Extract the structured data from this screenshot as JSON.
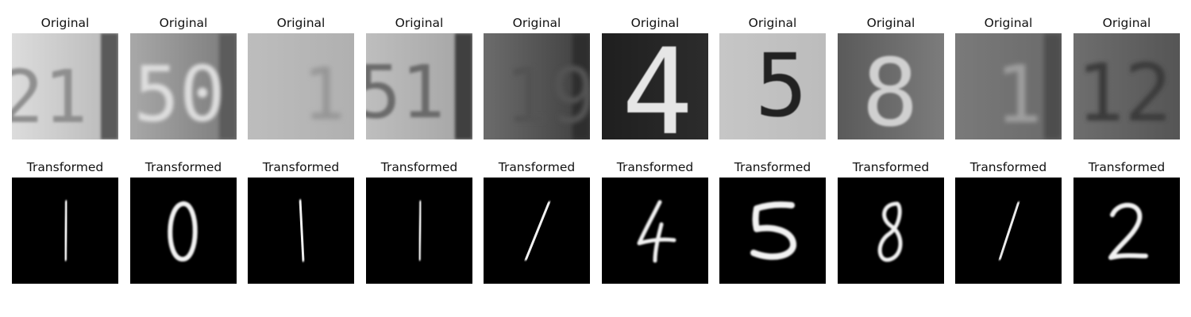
{
  "figure": {
    "original_label": "Original",
    "transformed_label": "Transformed",
    "original_digits": [
      "21",
      "50",
      "1",
      "51",
      "19",
      "4",
      "5",
      "8",
      "1",
      "12"
    ],
    "transformed_digits": [
      "1",
      "0",
      "1",
      "1",
      "1",
      "4",
      "5",
      "8",
      "1",
      "2"
    ]
  }
}
